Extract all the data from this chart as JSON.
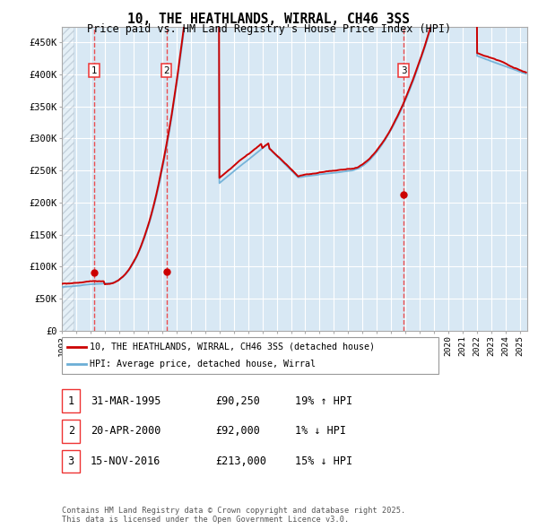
{
  "title": "10, THE HEATHLANDS, WIRRAL, CH46 3SS",
  "subtitle": "Price paid vs. HM Land Registry's House Price Index (HPI)",
  "ylim": [
    0,
    475000
  ],
  "yticks": [
    0,
    50000,
    100000,
    150000,
    200000,
    250000,
    300000,
    350000,
    400000,
    450000
  ],
  "ytick_labels": [
    "£0",
    "£50K",
    "£100K",
    "£150K",
    "£200K",
    "£250K",
    "£300K",
    "£350K",
    "£400K",
    "£450K"
  ],
  "hpi_color": "#6BAED6",
  "price_color": "#CC0000",
  "vline_color": "#EE3333",
  "bg_color": "#D8E8F4",
  "grid_color": "#FFFFFF",
  "transactions": [
    {
      "date_num": 1995.25,
      "price": 90250,
      "label": "1"
    },
    {
      "date_num": 2000.3,
      "price": 92000,
      "label": "2"
    },
    {
      "date_num": 2016.88,
      "price": 213000,
      "label": "3"
    }
  ],
  "legend_line1": "10, THE HEATHLANDS, WIRRAL, CH46 3SS (detached house)",
  "legend_line2": "HPI: Average price, detached house, Wirral",
  "table_rows": [
    {
      "num": "1",
      "date": "31-MAR-1995",
      "price": "£90,250",
      "hpi": "19% ↑ HPI"
    },
    {
      "num": "2",
      "date": "20-APR-2000",
      "price": "£92,000",
      "hpi": "1% ↓ HPI"
    },
    {
      "num": "3",
      "date": "15-NOV-2016",
      "price": "£213,000",
      "hpi": "15% ↓ HPI"
    }
  ],
  "footnote": "Contains HM Land Registry data © Crown copyright and database right 2025.\nThis data is licensed under the Open Government Licence v3.0."
}
